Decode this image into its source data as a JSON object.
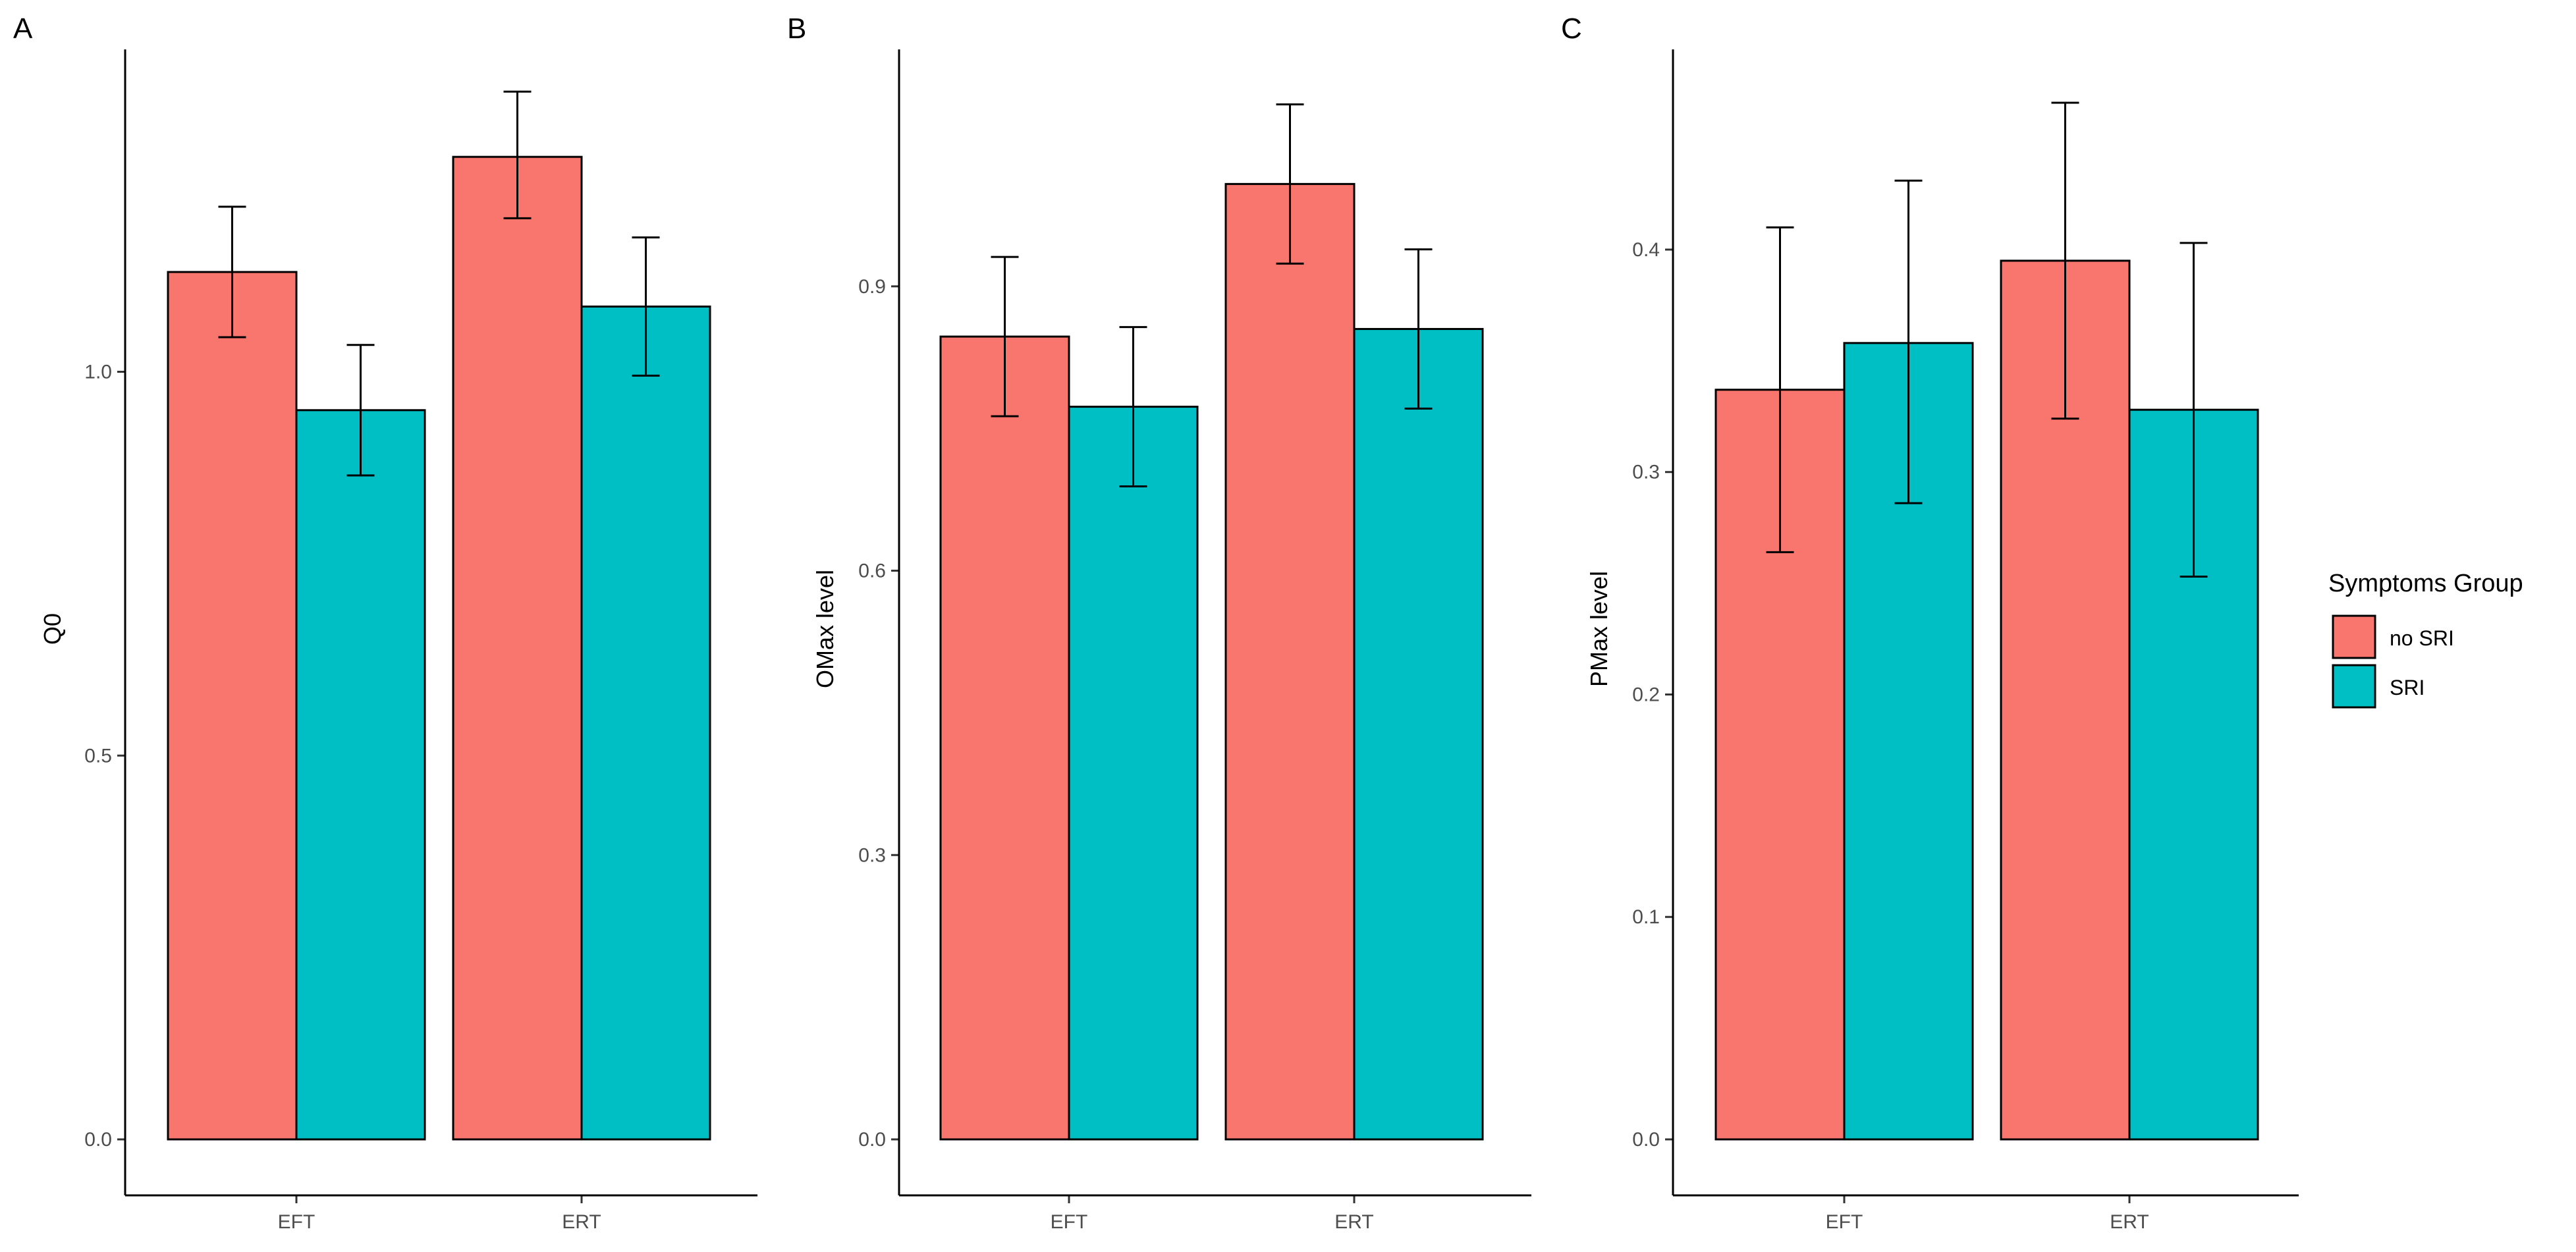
{
  "chart_data": [
    {
      "type": "bar",
      "panel": "A",
      "categories": [
        "EFT",
        "ERT"
      ],
      "ylabel": "Q0",
      "xlabel": "",
      "ylim": [
        0,
        1.42
      ],
      "yticks": [
        0.0,
        0.5,
        1.0
      ],
      "ytick_labels": [
        "0.0",
        "0.5",
        "1.0"
      ],
      "series": [
        {
          "name": "no SRI",
          "values": [
            1.13,
            1.28
          ],
          "err_low": [
            1.045,
            1.2
          ],
          "err_high": [
            1.215,
            1.365
          ]
        },
        {
          "name": "SRI",
          "values": [
            0.95,
            1.085
          ],
          "err_low": [
            0.865,
            0.995
          ],
          "err_high": [
            1.035,
            1.175
          ]
        }
      ]
    },
    {
      "type": "bar",
      "panel": "B",
      "categories": [
        "EFT",
        "ERT"
      ],
      "ylabel": "OMax level",
      "xlabel": "",
      "ylim": [
        0,
        1.15
      ],
      "yticks": [
        0.0,
        0.3,
        0.6,
        0.9
      ],
      "ytick_labels": [
        "0.0",
        "0.3",
        "0.6",
        "0.9"
      ],
      "series": [
        {
          "name": "no SRI",
          "values": [
            0.847,
            1.008
          ],
          "err_low": [
            0.763,
            0.924
          ],
          "err_high": [
            0.931,
            1.092
          ]
        },
        {
          "name": "SRI",
          "values": [
            0.773,
            0.855
          ],
          "err_low": [
            0.689,
            0.771
          ],
          "err_high": [
            0.857,
            0.939
          ]
        }
      ]
    },
    {
      "type": "bar",
      "panel": "C",
      "categories": [
        "EFT",
        "ERT"
      ],
      "ylabel": "PMax level",
      "xlabel": "",
      "ylim": [
        0,
        0.49
      ],
      "yticks": [
        0.0,
        0.1,
        0.2,
        0.3,
        0.4
      ],
      "ytick_labels": [
        "0.0",
        "0.1",
        "0.2",
        "0.3",
        "0.4"
      ],
      "series": [
        {
          "name": "no SRI",
          "values": [
            0.337,
            0.395
          ],
          "err_low": [
            0.264,
            0.324
          ],
          "err_high": [
            0.41,
            0.466
          ]
        },
        {
          "name": "SRI",
          "values": [
            0.358,
            0.328
          ],
          "err_low": [
            0.286,
            0.253
          ],
          "err_high": [
            0.431,
            0.403
          ]
        }
      ]
    }
  ],
  "legend": {
    "title": "Symptoms Group",
    "items": [
      {
        "label": "no SRI",
        "color": "#F8766D"
      },
      {
        "label": "SRI",
        "color": "#00BFC4"
      }
    ]
  },
  "colors": {
    "no SRI": "#F8766D",
    "SRI": "#00BFC4"
  }
}
